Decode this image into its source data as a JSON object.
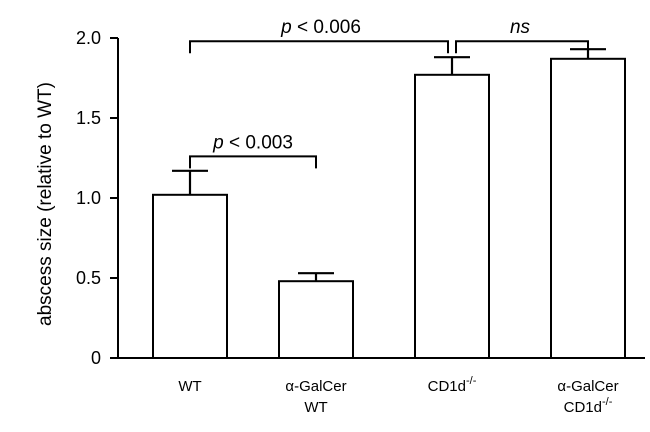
{
  "chart_data": {
    "type": "bar",
    "title": "",
    "xlabel": "",
    "ylabel": "abscess size (relative to WT)",
    "ylim": [
      0,
      2.1
    ],
    "yticks": [
      "0",
      "0.5",
      "1.0",
      "1.5",
      "2.0"
    ],
    "ytick_values": [
      0,
      0.5,
      1.0,
      1.5,
      2.0
    ],
    "categories": [
      {
        "line1": "WT",
        "line2": ""
      },
      {
        "line1": "α-GalCer",
        "line2": "WT"
      },
      {
        "line1": "CD1d",
        "sup1": "-/-",
        "line2": ""
      },
      {
        "line1": "α-GalCer",
        "line2": "CD1d",
        "sup2": "-/-"
      }
    ],
    "values": [
      1.02,
      0.48,
      1.77,
      1.87
    ],
    "errors": [
      0.15,
      0.05,
      0.11,
      0.06
    ],
    "bar_color": "#ffffff",
    "stroke_color": "#000000",
    "grid": false,
    "legend": "none",
    "annotations": [
      {
        "from": 0,
        "to": 1,
        "level": 1.26,
        "p": "p",
        "op": " < ",
        "val": "0.003"
      },
      {
        "from": 0,
        "to": 2,
        "level": 1.98,
        "p": "p",
        "op": " < ",
        "val": "0.006"
      },
      {
        "from": 2,
        "to": 3,
        "level": 1.98,
        "p": "ns",
        "op": "",
        "val": ""
      }
    ]
  }
}
